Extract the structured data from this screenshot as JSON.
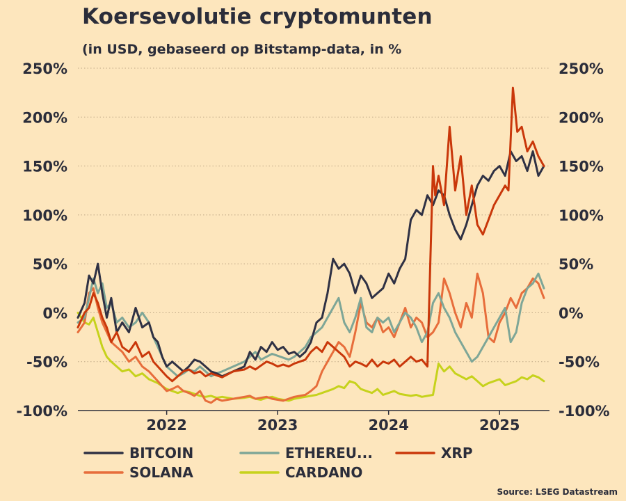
{
  "title": "Koersevolutie cryptomunten",
  "subtitle": "(in USD, gebaseerd op Bitstamp-data, in %",
  "source": "Source: LSEG Datastream",
  "chart_data": {
    "type": "line",
    "title": "Koersevolutie cryptomunten",
    "subtitle": "(in USD, gebaseerd op Bitstamp-data, in %",
    "ylabel": "%",
    "ylim": [
      -100,
      250
    ],
    "yticks": [
      {
        "value": 250,
        "label": "250%"
      },
      {
        "value": 200,
        "label": "200%"
      },
      {
        "value": 150,
        "label": "150%"
      },
      {
        "value": 100,
        "label": "100%"
      },
      {
        "value": 50,
        "label": "50%"
      },
      {
        "value": 0,
        "label": "0%"
      },
      {
        "value": -50,
        "label": "-50%"
      },
      {
        "value": -100,
        "label": "-100%"
      }
    ],
    "xlim": [
      2021.2,
      2025.45
    ],
    "xticks": [
      {
        "value": 2022,
        "label": "2022"
      },
      {
        "value": 2023,
        "label": "2023"
      },
      {
        "value": 2024,
        "label": "2024"
      },
      {
        "value": 2025,
        "label": "2025"
      }
    ],
    "grid": "horizontal dotted",
    "legend": "bottom",
    "series": [
      {
        "name": "BITCOIN",
        "color": "#2f3144",
        "x": [
          2021.2,
          2021.26,
          2021.3,
          2021.34,
          2021.38,
          2021.42,
          2021.46,
          2021.5,
          2021.55,
          2021.6,
          2021.66,
          2021.72,
          2021.78,
          2021.84,
          2021.88,
          2021.92,
          2021.96,
          2022.0,
          2022.05,
          2022.1,
          2022.15,
          2022.2,
          2022.25,
          2022.3,
          2022.35,
          2022.4,
          2022.45,
          2022.5,
          2022.6,
          2022.7,
          2022.75,
          2022.8,
          2022.85,
          2022.9,
          2022.95,
          2023.0,
          2023.05,
          2023.1,
          2023.15,
          2023.2,
          2023.25,
          2023.3,
          2023.35,
          2023.4,
          2023.45,
          2023.5,
          2023.55,
          2023.6,
          2023.65,
          2023.7,
          2023.75,
          2023.8,
          2023.85,
          2023.9,
          2023.95,
          2024.0,
          2024.05,
          2024.1,
          2024.15,
          2024.2,
          2024.25,
          2024.3,
          2024.35,
          2024.4,
          2024.45,
          2024.5,
          2024.55,
          2024.6,
          2024.65,
          2024.7,
          2024.75,
          2024.8,
          2024.85,
          2024.9,
          2024.95,
          2025.0,
          2025.05,
          2025.1,
          2025.15,
          2025.2,
          2025.25,
          2025.3,
          2025.35,
          2025.4
        ],
        "values": [
          -5,
          10,
          38,
          30,
          50,
          20,
          -5,
          15,
          -20,
          -10,
          -20,
          5,
          -15,
          -10,
          -25,
          -30,
          -45,
          -55,
          -50,
          -55,
          -60,
          -55,
          -48,
          -50,
          -55,
          -60,
          -62,
          -65,
          -60,
          -55,
          -40,
          -48,
          -35,
          -40,
          -30,
          -38,
          -35,
          -42,
          -40,
          -45,
          -40,
          -30,
          -10,
          -5,
          20,
          55,
          45,
          50,
          40,
          20,
          38,
          30,
          15,
          20,
          25,
          40,
          30,
          45,
          55,
          95,
          105,
          100,
          120,
          110,
          125,
          120,
          100,
          85,
          75,
          90,
          110,
          130,
          140,
          135,
          145,
          150,
          140,
          165,
          155,
          160,
          145,
          165,
          140,
          150
        ]
      },
      {
        "name": "ETHEREU...",
        "color": "#7ea697",
        "x": [
          2021.2,
          2021.26,
          2021.3,
          2021.34,
          2021.38,
          2021.42,
          2021.46,
          2021.5,
          2021.55,
          2021.6,
          2021.66,
          2021.72,
          2021.78,
          2021.84,
          2021.88,
          2021.92,
          2021.96,
          2022.0,
          2022.05,
          2022.1,
          2022.15,
          2022.2,
          2022.25,
          2022.3,
          2022.35,
          2022.4,
          2022.45,
          2022.5,
          2022.6,
          2022.7,
          2022.75,
          2022.8,
          2022.85,
          2022.9,
          2022.95,
          2023.0,
          2023.05,
          2023.1,
          2023.15,
          2023.2,
          2023.25,
          2023.3,
          2023.35,
          2023.4,
          2023.45,
          2023.5,
          2023.55,
          2023.6,
          2023.65,
          2023.7,
          2023.75,
          2023.8,
          2023.85,
          2023.9,
          2023.95,
          2024.0,
          2024.05,
          2024.1,
          2024.15,
          2024.2,
          2024.25,
          2024.3,
          2024.35,
          2024.4,
          2024.45,
          2024.5,
          2024.55,
          2024.6,
          2024.65,
          2024.7,
          2024.75,
          2024.8,
          2024.85,
          2024.9,
          2024.95,
          2025.0,
          2025.05,
          2025.1,
          2025.15,
          2025.2,
          2025.25,
          2025.3,
          2025.35,
          2025.4
        ],
        "values": [
          -10,
          -5,
          15,
          35,
          20,
          30,
          5,
          10,
          -10,
          -5,
          -15,
          -10,
          0,
          -10,
          -25,
          -35,
          -45,
          -55,
          -60,
          -65,
          -62,
          -58,
          -60,
          -55,
          -60,
          -65,
          -62,
          -60,
          -55,
          -50,
          -45,
          -40,
          -48,
          -45,
          -42,
          -44,
          -46,
          -48,
          -45,
          -40,
          -35,
          -25,
          -20,
          -15,
          -5,
          5,
          15,
          -10,
          -20,
          -5,
          15,
          -15,
          -20,
          -5,
          -10,
          -5,
          -20,
          -10,
          0,
          -5,
          -15,
          -30,
          -20,
          10,
          20,
          5,
          -5,
          -20,
          -30,
          -40,
          -50,
          -45,
          -35,
          -25,
          -15,
          -5,
          5,
          -30,
          -20,
          10,
          25,
          30,
          40,
          25
        ]
      },
      {
        "name": "XRP",
        "color": "#c9370a",
        "x": [
          2021.2,
          2021.26,
          2021.3,
          2021.34,
          2021.38,
          2021.42,
          2021.46,
          2021.5,
          2021.55,
          2021.6,
          2021.66,
          2021.72,
          2021.78,
          2021.84,
          2021.88,
          2021.92,
          2021.96,
          2022.0,
          2022.05,
          2022.1,
          2022.15,
          2022.2,
          2022.25,
          2022.3,
          2022.35,
          2022.4,
          2022.45,
          2022.5,
          2022.6,
          2022.7,
          2022.75,
          2022.8,
          2022.85,
          2022.9,
          2022.95,
          2023.0,
          2023.05,
          2023.1,
          2023.15,
          2023.2,
          2023.25,
          2023.3,
          2023.35,
          2023.4,
          2023.45,
          2023.5,
          2023.55,
          2023.6,
          2023.65,
          2023.7,
          2023.75,
          2023.8,
          2023.85,
          2023.9,
          2023.95,
          2024.0,
          2024.05,
          2024.1,
          2024.15,
          2024.2,
          2024.25,
          2024.3,
          2024.35,
          2024.4,
          2024.42,
          2024.45,
          2024.5,
          2024.55,
          2024.6,
          2024.65,
          2024.7,
          2024.75,
          2024.8,
          2024.85,
          2024.9,
          2024.95,
          2025.0,
          2025.05,
          2025.08,
          2025.12,
          2025.16,
          2025.2,
          2025.25,
          2025.3,
          2025.35,
          2025.4
        ],
        "values": [
          -15,
          0,
          5,
          20,
          10,
          -5,
          -15,
          -30,
          -20,
          -35,
          -40,
          -30,
          -45,
          -40,
          -50,
          -55,
          -60,
          -65,
          -70,
          -65,
          -60,
          -58,
          -62,
          -60,
          -65,
          -62,
          -64,
          -66,
          -60,
          -58,
          -55,
          -58,
          -54,
          -50,
          -52,
          -55,
          -53,
          -55,
          -52,
          -50,
          -48,
          -40,
          -35,
          -40,
          -30,
          -35,
          -40,
          -45,
          -55,
          -50,
          -52,
          -55,
          -48,
          -55,
          -50,
          -52,
          -48,
          -55,
          -50,
          -45,
          -50,
          -48,
          -55,
          150,
          120,
          140,
          110,
          190,
          125,
          160,
          100,
          130,
          90,
          80,
          95,
          110,
          120,
          130,
          125,
          230,
          185,
          190,
          165,
          175,
          160,
          150
        ]
      },
      {
        "name": "SOLANA",
        "color": "#e76d3b",
        "x": [
          2021.2,
          2021.26,
          2021.3,
          2021.34,
          2021.38,
          2021.42,
          2021.46,
          2021.5,
          2021.55,
          2021.6,
          2021.66,
          2021.72,
          2021.78,
          2021.84,
          2021.88,
          2021.92,
          2021.96,
          2022.0,
          2022.05,
          2022.1,
          2022.15,
          2022.2,
          2022.25,
          2022.3,
          2022.35,
          2022.4,
          2022.45,
          2022.5,
          2022.6,
          2022.7,
          2022.75,
          2022.8,
          2022.85,
          2022.9,
          2022.95,
          2023.0,
          2023.05,
          2023.1,
          2023.15,
          2023.2,
          2023.25,
          2023.3,
          2023.35,
          2023.4,
          2023.45,
          2023.5,
          2023.55,
          2023.6,
          2023.65,
          2023.7,
          2023.75,
          2023.8,
          2023.85,
          2023.9,
          2023.95,
          2024.0,
          2024.05,
          2024.1,
          2024.15,
          2024.2,
          2024.25,
          2024.3,
          2024.35,
          2024.4,
          2024.45,
          2024.5,
          2024.55,
          2024.6,
          2024.65,
          2024.7,
          2024.75,
          2024.8,
          2024.85,
          2024.9,
          2024.95,
          2025.0,
          2025.05,
          2025.1,
          2025.15,
          2025.2,
          2025.25,
          2025.3,
          2025.35,
          2025.4
        ],
        "values": [
          -20,
          -10,
          20,
          25,
          5,
          -10,
          -20,
          -30,
          -35,
          -40,
          -50,
          -45,
          -55,
          -60,
          -65,
          -70,
          -75,
          -80,
          -78,
          -75,
          -80,
          -82,
          -85,
          -80,
          -90,
          -92,
          -88,
          -90,
          -88,
          -86,
          -85,
          -88,
          -87,
          -86,
          -88,
          -89,
          -90,
          -88,
          -86,
          -85,
          -84,
          -80,
          -75,
          -60,
          -50,
          -40,
          -30,
          -35,
          -45,
          -20,
          10,
          -10,
          -15,
          -5,
          -20,
          -15,
          -25,
          -10,
          5,
          -15,
          -5,
          -10,
          -25,
          -20,
          -10,
          35,
          20,
          0,
          -15,
          10,
          -5,
          40,
          20,
          -25,
          -30,
          -10,
          0,
          15,
          5,
          20,
          25,
          35,
          30,
          15
        ]
      },
      {
        "name": "CARDANO",
        "color": "#c6d21c",
        "x": [
          2021.2,
          2021.26,
          2021.3,
          2021.34,
          2021.38,
          2021.42,
          2021.46,
          2021.5,
          2021.55,
          2021.6,
          2021.66,
          2021.72,
          2021.78,
          2021.84,
          2021.88,
          2021.92,
          2021.96,
          2022.0,
          2022.05,
          2022.1,
          2022.15,
          2022.2,
          2022.25,
          2022.3,
          2022.35,
          2022.4,
          2022.45,
          2022.5,
          2022.6,
          2022.7,
          2022.75,
          2022.8,
          2022.85,
          2022.9,
          2022.95,
          2023.0,
          2023.05,
          2023.1,
          2023.15,
          2023.2,
          2023.25,
          2023.3,
          2023.35,
          2023.4,
          2023.45,
          2023.5,
          2023.55,
          2023.6,
          2023.65,
          2023.7,
          2023.75,
          2023.8,
          2023.85,
          2023.9,
          2023.95,
          2024.0,
          2024.05,
          2024.1,
          2024.15,
          2024.2,
          2024.25,
          2024.3,
          2024.35,
          2024.4,
          2024.45,
          2024.5,
          2024.55,
          2024.6,
          2024.65,
          2024.7,
          2024.75,
          2024.8,
          2024.85,
          2024.9,
          2024.95,
          2025.0,
          2025.05,
          2025.1,
          2025.15,
          2025.2,
          2025.25,
          2025.3,
          2025.35,
          2025.4
        ],
        "values": [
          0,
          -10,
          -12,
          -5,
          -20,
          -35,
          -45,
          -50,
          -55,
          -60,
          -58,
          -65,
          -62,
          -68,
          -70,
          -72,
          -75,
          -78,
          -80,
          -82,
          -80,
          -81,
          -83,
          -85,
          -86,
          -85,
          -87,
          -86,
          -88,
          -87,
          -86,
          -88,
          -89,
          -87,
          -86,
          -88,
          -89,
          -90,
          -88,
          -87,
          -86,
          -85,
          -84,
          -82,
          -80,
          -78,
          -75,
          -77,
          -70,
          -72,
          -78,
          -80,
          -82,
          -78,
          -84,
          -82,
          -80,
          -83,
          -84,
          -85,
          -84,
          -86,
          -85,
          -84,
          -52,
          -60,
          -55,
          -62,
          -65,
          -68,
          -65,
          -70,
          -75,
          -72,
          -70,
          -68,
          -74,
          -72,
          -70,
          -66,
          -68,
          -64,
          -66,
          -70
        ]
      }
    ]
  }
}
